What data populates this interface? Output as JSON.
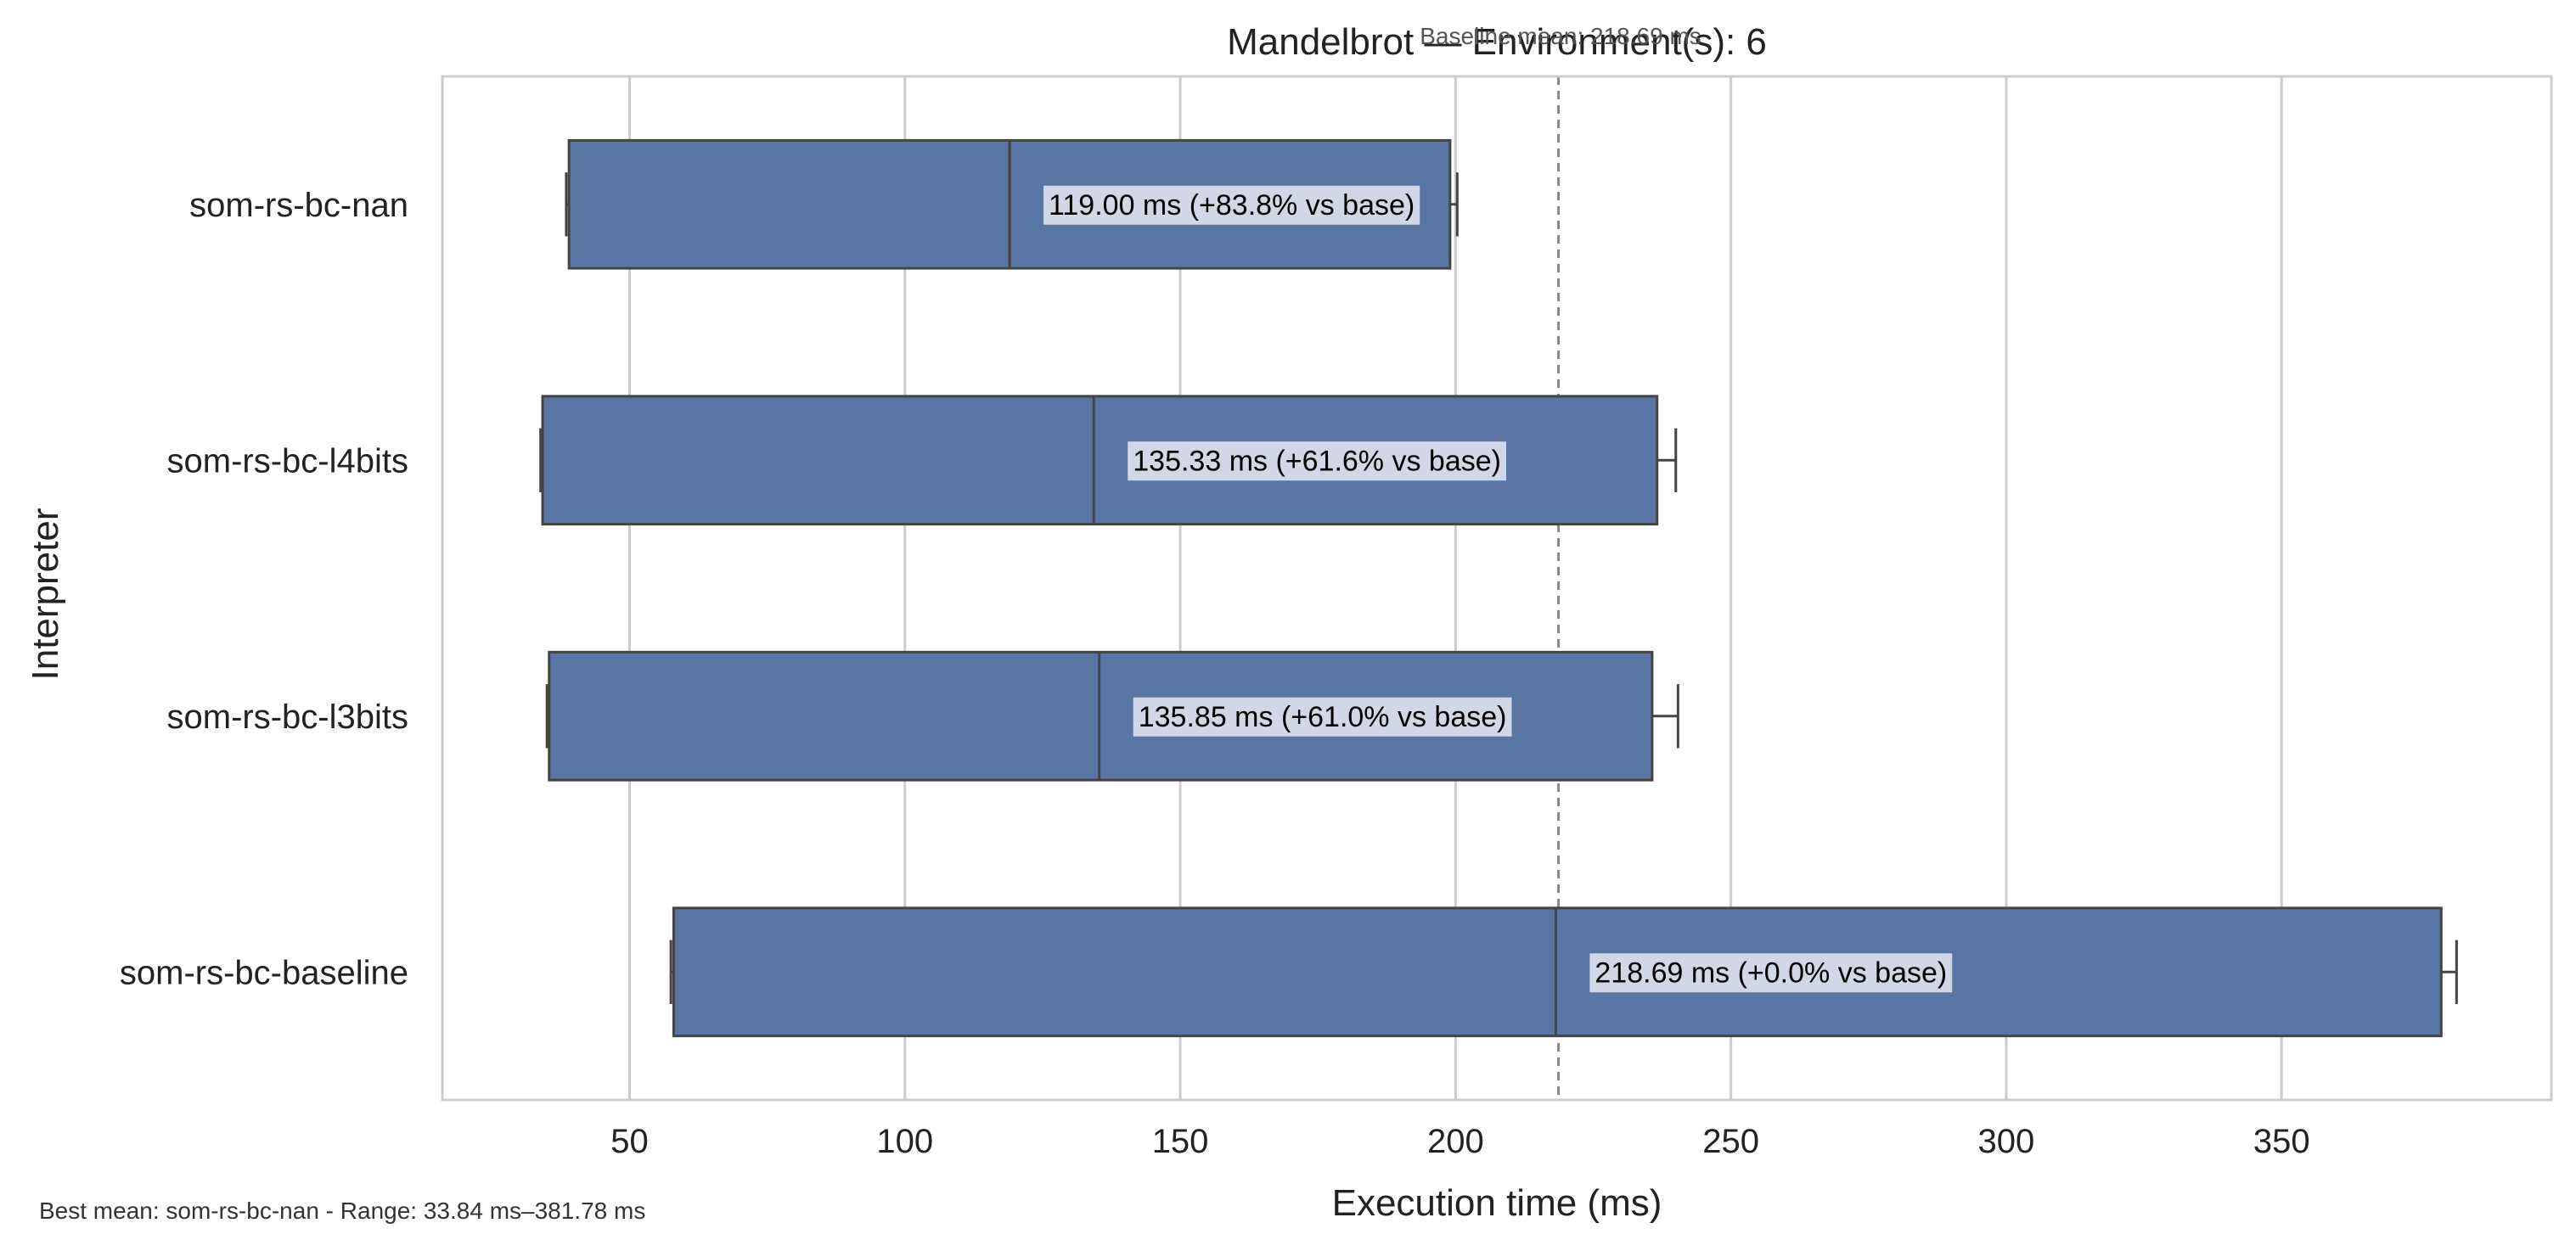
{
  "chart_data": {
    "type": "box",
    "title": "Mandelbrot — Environment(s): 6",
    "baseline_annotation": "Baseline mean: 218.69 ms",
    "xlabel": "Execution time (ms)",
    "ylabel": "Interpreter",
    "xlim": [
      16,
      399
    ],
    "xticks": [
      50,
      100,
      150,
      200,
      250,
      300,
      350
    ],
    "grid": "vertical",
    "baseline_mean": 218.69,
    "box_color": "#5875a4",
    "edge_color": "#444444",
    "label_bg": "#d0d7e6",
    "categories": [
      "som-rs-bc-nan",
      "som-rs-bc-l4bits",
      "som-rs-bc-l3bits",
      "som-rs-bc-baseline"
    ],
    "boxes": [
      {
        "name": "som-rs-bc-nan",
        "whisker_low": 38.5,
        "q1": 39.0,
        "median": 119.0,
        "q3": 199.0,
        "whisker_high": 200.3,
        "label": "119.00 ms  (+83.8% vs base)"
      },
      {
        "name": "som-rs-bc-l4bits",
        "whisker_low": 33.84,
        "q1": 34.2,
        "median": 134.3,
        "q3": 236.6,
        "whisker_high": 240.0,
        "label": "135.33 ms  (+61.6% vs base)"
      },
      {
        "name": "som-rs-bc-l3bits",
        "whisker_low": 35.0,
        "q1": 35.4,
        "median": 135.3,
        "q3": 235.7,
        "whisker_high": 240.4,
        "label": "135.85 ms  (+61.0% vs base)"
      },
      {
        "name": "som-rs-bc-baseline",
        "whisker_low": 57.5,
        "q1": 58.0,
        "median": 218.2,
        "q3": 379.0,
        "whisker_high": 381.78,
        "label": "218.69 ms  (+0.0% vs base)"
      }
    ],
    "footnote": "Best mean: som-rs-bc-nan - Range: 33.84 ms–381.78 ms"
  }
}
